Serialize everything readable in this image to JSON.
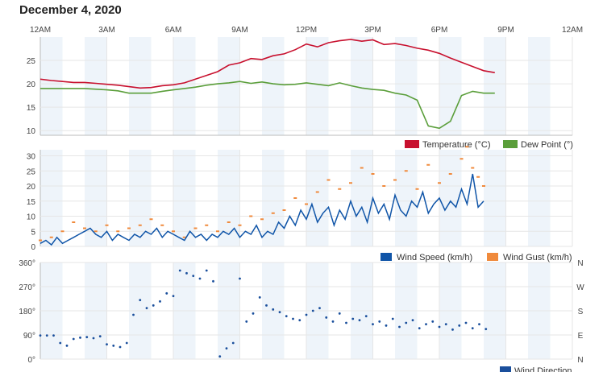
{
  "page": {
    "title": "December 4, 2020"
  },
  "colors": {
    "temperature": "#c8102e",
    "dewpoint": "#5a9e3a",
    "wind_speed": "#1055a8",
    "wind_gust": "#f08a3c",
    "wind_direction": "#1a4f9c",
    "band": "#eef4fa",
    "grid": "#e6e6e6"
  },
  "chart_data": [
    {
      "type": "line",
      "id": "temp",
      "x_unit": "hours since midnight",
      "x_ticks": [
        "12AM",
        "3AM",
        "6AM",
        "9AM",
        "12PM",
        "3PM",
        "6PM",
        "9PM",
        "12AM"
      ],
      "xlim": [
        0,
        24
      ],
      "ylim": [
        9,
        30
      ],
      "y_ticks": [
        10,
        15,
        20,
        25
      ],
      "series": [
        {
          "name": "Temperature (°C)",
          "color_key": "temperature",
          "x": [
            0,
            0.5,
            1,
            1.5,
            2,
            2.5,
            3,
            3.5,
            4,
            4.5,
            5,
            5.5,
            6,
            6.5,
            7,
            7.5,
            8,
            8.5,
            9,
            9.5,
            10,
            10.5,
            11,
            11.5,
            12,
            12.5,
            13,
            13.5,
            14,
            14.5,
            15,
            15.5,
            16,
            16.5,
            17,
            17.5,
            18,
            18.5,
            19,
            19.5,
            20,
            20.5
          ],
          "y": [
            21,
            20.7,
            20.5,
            20.3,
            20.3,
            20.1,
            19.9,
            19.7,
            19.4,
            19.1,
            19.2,
            19.6,
            19.8,
            20.2,
            21,
            21.8,
            22.6,
            24,
            24.5,
            25.4,
            25.2,
            26,
            26.4,
            27.3,
            28.5,
            27.9,
            28.8,
            29.2,
            29.5,
            29.1,
            29.4,
            28.4,
            28.6,
            28.2,
            27.6,
            27.2,
            26.5,
            25.5,
            24.6,
            23.7,
            22.8,
            22.4
          ]
        },
        {
          "name": "Dew Point (°)",
          "color_key": "dewpoint",
          "x": [
            0,
            1,
            2,
            3,
            3.5,
            4,
            5,
            5.5,
            6,
            6.5,
            7,
            7.5,
            8,
            8.5,
            9,
            9.5,
            10,
            10.5,
            11,
            11.5,
            12,
            12.5,
            13,
            13.5,
            14,
            14.5,
            15,
            15.5,
            16,
            16.5,
            17,
            17.5,
            18,
            18.5,
            19,
            19.5,
            20,
            20.5
          ],
          "y": [
            19,
            19,
            19,
            18.7,
            18.5,
            18,
            18,
            18.4,
            18.7,
            19,
            19.3,
            19.7,
            20,
            20.2,
            20.5,
            20.1,
            20.4,
            20,
            19.8,
            19.9,
            20.2,
            19.9,
            19.6,
            20.2,
            19.6,
            19.1,
            18.8,
            18.6,
            18,
            17.6,
            16.5,
            11,
            10.5,
            12,
            17.5,
            18.4,
            18,
            18
          ]
        }
      ],
      "legend_position": "bottom-right"
    },
    {
      "type": "line",
      "id": "wind",
      "x_unit": "hours since midnight",
      "xlim": [
        0,
        24
      ],
      "ylim": [
        0,
        32
      ],
      "y_ticks": [
        0,
        5,
        10,
        15,
        20,
        25,
        30
      ],
      "series": [
        {
          "name": "Wind Speed (km/h)",
          "color_key": "wind_speed",
          "x": [
            0,
            0.25,
            0.5,
            0.75,
            1,
            1.25,
            1.5,
            1.75,
            2,
            2.25,
            2.5,
            2.75,
            3,
            3.25,
            3.5,
            3.75,
            4,
            4.25,
            4.5,
            4.75,
            5,
            5.25,
            5.5,
            5.75,
            6,
            6.25,
            6.5,
            6.75,
            7,
            7.25,
            7.5,
            7.75,
            8,
            8.25,
            8.5,
            8.75,
            9,
            9.25,
            9.5,
            9.75,
            10,
            10.25,
            10.5,
            10.75,
            11,
            11.25,
            11.5,
            11.75,
            12,
            12.25,
            12.5,
            12.75,
            13,
            13.25,
            13.5,
            13.75,
            14,
            14.25,
            14.5,
            14.75,
            15,
            15.25,
            15.5,
            15.75,
            16,
            16.25,
            16.5,
            16.75,
            17,
            17.25,
            17.5,
            17.75,
            18,
            18.25,
            18.5,
            18.75,
            19,
            19.25,
            19.5,
            19.75,
            20
          ],
          "y": [
            1,
            2,
            0.5,
            3,
            1,
            2,
            3,
            4,
            5,
            6,
            4,
            3,
            5,
            2,
            4,
            3,
            2,
            4,
            3,
            5,
            4,
            6,
            3,
            5,
            4,
            3,
            2,
            5,
            3,
            4,
            2,
            4,
            3,
            5,
            4,
            6,
            3,
            5,
            4,
            7,
            3,
            5,
            4,
            8,
            6,
            10,
            7,
            12,
            9,
            14,
            8,
            11,
            13,
            7,
            12,
            9,
            15,
            10,
            13,
            8,
            16,
            11,
            14,
            9,
            17,
            12,
            10,
            15,
            13,
            18,
            11,
            14,
            16,
            12,
            15,
            13,
            19,
            14,
            24,
            13,
            15
          ]
        },
        {
          "name": "Wind Gust (km/h)",
          "color_key": "wind_gust",
          "x": [
            0,
            0.5,
            1,
            1.5,
            2,
            2.5,
            3,
            3.5,
            4,
            4.5,
            5,
            5.5,
            6,
            6.5,
            7,
            7.5,
            8,
            8.5,
            9,
            9.5,
            10,
            10.5,
            11,
            11.5,
            12,
            12.5,
            13,
            13.5,
            14,
            14.5,
            15,
            15.5,
            16,
            16.5,
            17,
            17.5,
            18,
            18.5,
            19,
            19.25,
            19.5,
            19.75,
            20
          ],
          "y": [
            2,
            3,
            5,
            8,
            6,
            5,
            7,
            5,
            6,
            7,
            9,
            7,
            5,
            3,
            6,
            7,
            5,
            8,
            7,
            10,
            9,
            11,
            12,
            16,
            14,
            18,
            22,
            19,
            21,
            26,
            24,
            20,
            22,
            25,
            19,
            27,
            21,
            24,
            29,
            33,
            26,
            23,
            20
          ]
        },
        {
          "name": "Wind Direction",
          "color_key": "wind_direction"
        }
      ],
      "legend_position": "bottom-right"
    },
    {
      "type": "scatter",
      "id": "direction",
      "x_unit": "hours since midnight",
      "xlim": [
        0,
        24
      ],
      "ylim": [
        0,
        360
      ],
      "y_ticks": [
        "0°",
        "90°",
        "180°",
        "270°",
        "360°"
      ],
      "y_right_ticks": [
        "N",
        "E",
        "S",
        "W",
        "N"
      ],
      "series": [
        {
          "name": "Wind Direction",
          "color_key": "wind_direction",
          "x": [
            0,
            0.3,
            0.6,
            0.9,
            1.2,
            1.5,
            1.8,
            2.1,
            2.4,
            2.7,
            3,
            3.3,
            3.6,
            3.9,
            4.2,
            4.5,
            4.8,
            5.1,
            5.4,
            5.7,
            6,
            6.3,
            6.6,
            6.9,
            7.2,
            7.5,
            7.8,
            8.1,
            8.4,
            8.7,
            9,
            9.3,
            9.6,
            9.9,
            10.2,
            10.5,
            10.8,
            11.1,
            11.4,
            11.7,
            12,
            12.3,
            12.6,
            12.9,
            13.2,
            13.5,
            13.8,
            14.1,
            14.4,
            14.7,
            15,
            15.3,
            15.6,
            15.9,
            16.2,
            16.5,
            16.8,
            17.1,
            17.4,
            17.7,
            18,
            18.3,
            18.6,
            18.9,
            19.2,
            19.5,
            19.8,
            20.1
          ],
          "y": [
            88,
            88,
            88,
            60,
            50,
            75,
            80,
            82,
            78,
            85,
            55,
            50,
            45,
            60,
            165,
            220,
            190,
            200,
            215,
            245,
            235,
            330,
            320,
            310,
            300,
            330,
            290,
            10,
            40,
            60,
            300,
            140,
            170,
            230,
            200,
            185,
            175,
            160,
            150,
            145,
            165,
            180,
            190,
            155,
            140,
            170,
            135,
            150,
            145,
            160,
            130,
            140,
            125,
            150,
            120,
            135,
            145,
            115,
            130,
            140,
            120,
            130,
            110,
            125,
            135,
            115,
            130,
            112
          ]
        }
      ]
    }
  ]
}
